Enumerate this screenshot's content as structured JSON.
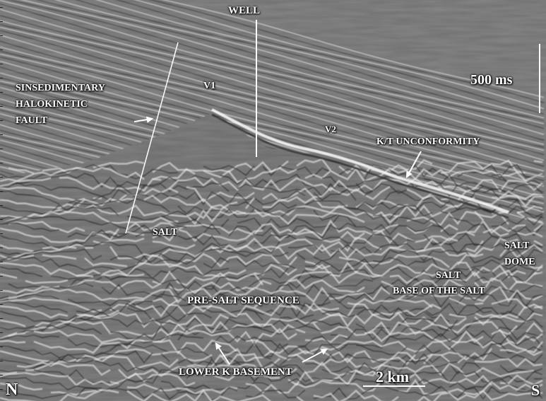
{
  "image": {
    "kind": "seismic reflection section, grayscale",
    "labels": {
      "well": "WELL",
      "fault_line1": "SINSEDIMENTARY",
      "fault_line2": "HALOKINETIC",
      "fault_line3": "FAULT",
      "v1": "V1",
      "v2": "V2",
      "unconformity": "K/T UNCONFORMITY",
      "salt_left": "SALT",
      "salt_dome_line1": "SALT",
      "salt_dome_line2": "DOME",
      "salt_right": "SALT",
      "base_salt": "BASE OF THE SALT",
      "pre_salt": "PRE-SALT SEQUENCE",
      "lower_k": "LOWER K BASEMENT",
      "north": "N",
      "south": "S"
    },
    "scale_bars": {
      "vertical_label": "500 ms",
      "horizontal_label": "2 km"
    },
    "colors": {
      "label_text": "#ffffff",
      "reflector_bright": "#f4f4f4",
      "reflector_dark": "#1a1a1a",
      "background_gray": "#707070"
    }
  }
}
